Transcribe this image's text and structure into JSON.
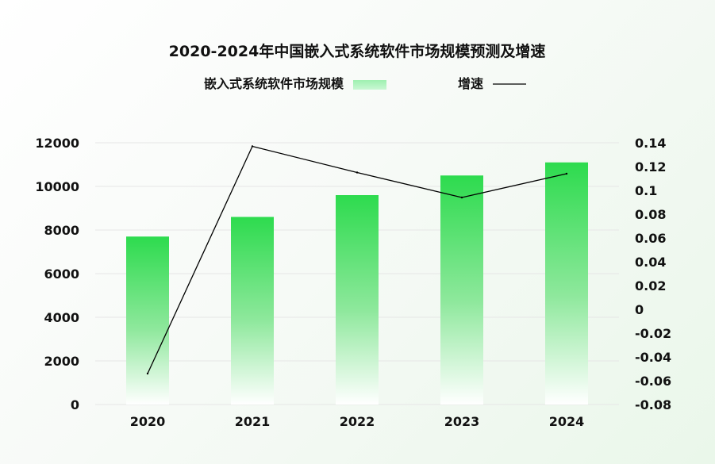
{
  "chart_data": {
    "type": "bar",
    "title": "2020-2024年中国嵌入式系统软件市场规模预测及增速",
    "categories": [
      "2020",
      "2021",
      "2022",
      "2023",
      "2024"
    ],
    "series": [
      {
        "name": "嵌入式系统软件市场规模",
        "type": "bar",
        "axis": "left",
        "values": [
          7700,
          8600,
          9600,
          10500,
          11100
        ],
        "color": "#2ddb4e"
      },
      {
        "name": "增速",
        "type": "line",
        "axis": "right",
        "values": [
          -0.054,
          0.137,
          0.115,
          0.094,
          0.114
        ],
        "color": "#000000"
      }
    ],
    "ylim": [
      0,
      12000
    ],
    "yticks": [
      "0",
      "2000",
      "4000",
      "6000",
      "8000",
      "10000",
      "12000"
    ],
    "y2lim": [
      -0.08,
      0.14
    ],
    "y2ticks": [
      "-0.08",
      "-0.06",
      "-0.04",
      "-0.02",
      "0",
      "0.02",
      "0.04",
      "0.06",
      "0.08",
      "0.1",
      "0.12",
      "0.14"
    ],
    "legend_position": "top",
    "grid": true
  }
}
